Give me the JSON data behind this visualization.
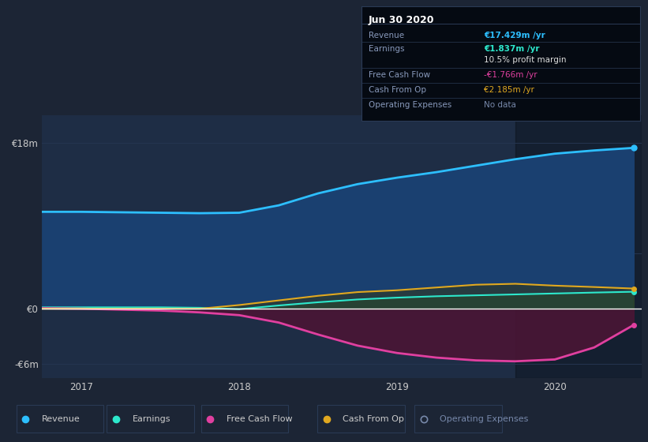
{
  "background_color": "#1c2535",
  "plot_bg_color": "#1e2d45",
  "x": [
    2016.75,
    2017.0,
    2017.25,
    2017.5,
    2017.75,
    2018.0,
    2018.25,
    2018.5,
    2018.75,
    2019.0,
    2019.25,
    2019.5,
    2019.75,
    2020.0,
    2020.25,
    2020.5
  ],
  "revenue": [
    10.5,
    10.5,
    10.45,
    10.4,
    10.35,
    10.4,
    11.2,
    12.5,
    13.5,
    14.2,
    14.8,
    15.5,
    16.2,
    16.8,
    17.15,
    17.429
  ],
  "earnings": [
    0.15,
    0.15,
    0.15,
    0.15,
    0.1,
    -0.05,
    0.35,
    0.7,
    1.0,
    1.2,
    1.35,
    1.45,
    1.55,
    1.65,
    1.75,
    1.837
  ],
  "fcf": [
    0.05,
    0.0,
    -0.1,
    -0.2,
    -0.4,
    -0.7,
    -1.5,
    -2.8,
    -4.0,
    -4.8,
    -5.3,
    -5.6,
    -5.7,
    -5.5,
    -4.2,
    -1.766
  ],
  "cashfromop": [
    0.0,
    0.0,
    0.0,
    0.0,
    0.0,
    0.4,
    0.9,
    1.4,
    1.8,
    2.0,
    2.3,
    2.6,
    2.7,
    2.5,
    2.35,
    2.185
  ],
  "revenue_color": "#2dbfff",
  "earnings_color": "#2de8cc",
  "fcf_color": "#e040a0",
  "cashfromop_color": "#e0a820",
  "revenue_fill": "#1a4070",
  "earnings_fill": "#1a5550",
  "fcf_fill": "#4a1535",
  "cashfromop_fill": "#303820",
  "ylim": [
    -7.5,
    21
  ],
  "xlim_start": 2016.75,
  "xlim_end": 2020.55,
  "xticks": [
    2017,
    2018,
    2019,
    2020
  ],
  "ytick_vals": [
    18,
    0,
    -6
  ],
  "ytick_labels": [
    "€18m",
    "€0",
    "-€6m"
  ],
  "dark_band_start": 2019.75,
  "tooltip": {
    "title": "Jun 30 2020",
    "rows": [
      {
        "label": "Revenue",
        "value": "€17.429m /yr",
        "value_color": "#2dbfff",
        "label_color": "#8899bb"
      },
      {
        "label": "Earnings",
        "value": "€1.837m /yr",
        "value_color": "#2de8cc",
        "label_color": "#8899bb"
      },
      {
        "label": "",
        "value": "10.5% profit margin",
        "value_color": "#dddddd",
        "label_color": ""
      },
      {
        "label": "Free Cash Flow",
        "value": "-€1.766m /yr",
        "value_color": "#e040a0",
        "label_color": "#8899bb"
      },
      {
        "label": "Cash From Op",
        "value": "€2.185m /yr",
        "value_color": "#e0a820",
        "label_color": "#8899bb"
      },
      {
        "label": "Operating Expenses",
        "value": "No data",
        "value_color": "#7788aa",
        "label_color": "#8899bb"
      }
    ]
  },
  "legend_items": [
    {
      "label": "Revenue",
      "color": "#2dbfff",
      "filled": true
    },
    {
      "label": "Earnings",
      "color": "#2de8cc",
      "filled": true
    },
    {
      "label": "Free Cash Flow",
      "color": "#e040a0",
      "filled": true
    },
    {
      "label": "Cash From Op",
      "color": "#e0a820",
      "filled": true
    },
    {
      "label": "Operating Expenses",
      "color": "#7788aa",
      "filled": false
    }
  ]
}
